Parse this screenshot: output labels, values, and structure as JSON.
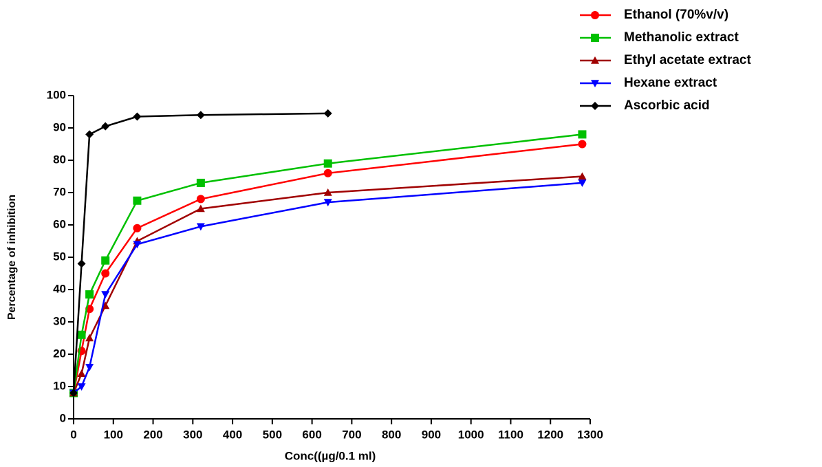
{
  "chart_data": {
    "type": "line",
    "x_label": "Conc((µg/0.1 ml)",
    "y_label": "Percentage of inhibition",
    "x": [
      0,
      20,
      40,
      80,
      160,
      320,
      640,
      1280
    ],
    "xlim": [
      0,
      1300
    ],
    "xticks": [
      0,
      100,
      200,
      300,
      400,
      500,
      600,
      700,
      800,
      900,
      1000,
      1100,
      1200,
      1300
    ],
    "ylim": [
      0,
      100
    ],
    "yticks": [
      0,
      10,
      20,
      30,
      40,
      50,
      60,
      70,
      80,
      90,
      100
    ],
    "legend": "top-right",
    "series": [
      {
        "name": "Ethanol (70%v/v)",
        "color": "#ff0000",
        "marker": "circle",
        "values": [
          8,
          21,
          34,
          45,
          59,
          68,
          76,
          85
        ]
      },
      {
        "name": "Methanolic extract",
        "color": "#00c000",
        "marker": "square",
        "values": [
          8,
          26,
          38.5,
          49,
          67.5,
          73,
          79,
          88
        ]
      },
      {
        "name": "Ethyl acetate extract",
        "color": "#a00000",
        "marker": "triangle-up",
        "values": [
          8,
          14,
          25,
          35,
          55,
          65,
          70,
          75
        ]
      },
      {
        "name": "Hexane extract",
        "color": "#0000ff",
        "marker": "triangle-down",
        "values": [
          8,
          10,
          16,
          38.5,
          54,
          59.5,
          67,
          73
        ]
      },
      {
        "name": "Ascorbic acid",
        "color": "#000000",
        "marker": "diamond",
        "values": [
          8,
          48,
          88,
          90.5,
          93.5,
          94,
          94.5,
          null
        ]
      }
    ]
  }
}
